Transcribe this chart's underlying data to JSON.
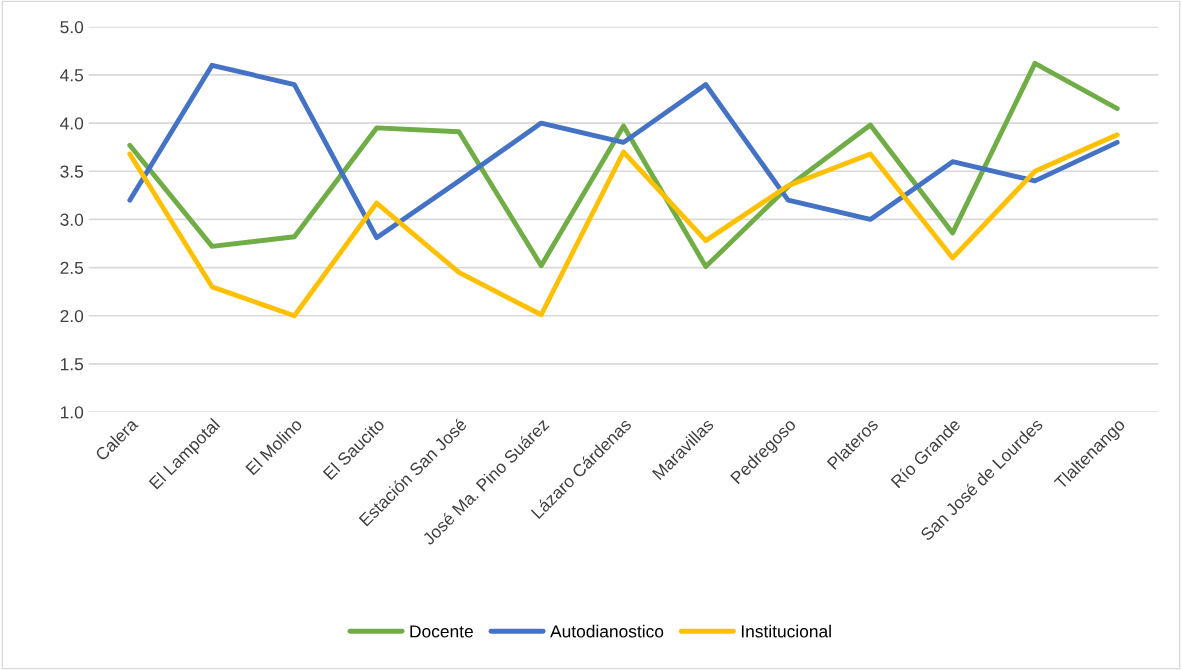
{
  "chart_data": {
    "type": "line",
    "categories": [
      "Calera",
      "El Lampotal",
      "El Molino",
      "El Saucito",
      "Estación San José",
      "José Ma. Pino Suárez",
      "Lázaro Cárdenas",
      "Maravillas",
      "Pedregoso",
      "Plateros",
      "Río Grande",
      "San José de Lourdes",
      "Tlaltenango"
    ],
    "series": [
      {
        "name": "Docente",
        "color": "#70ad47",
        "values": [
          3.77,
          2.72,
          2.82,
          3.95,
          3.91,
          2.52,
          3.97,
          2.51,
          3.34,
          3.98,
          2.86,
          4.62,
          4.15
        ]
      },
      {
        "name": "Autodianostico",
        "color": "#4472c4",
        "values": [
          3.2,
          4.6,
          4.4,
          2.81,
          3.4,
          4.0,
          3.8,
          4.4,
          3.2,
          3.0,
          3.6,
          3.4,
          3.8
        ]
      },
      {
        "name": "Institucional",
        "color": "#ffc000",
        "values": [
          3.68,
          2.3,
          2.0,
          3.17,
          2.45,
          2.01,
          3.7,
          2.78,
          3.35,
          3.68,
          2.6,
          3.5,
          3.88
        ]
      }
    ],
    "ylim": [
      1.0,
      5.0
    ],
    "yticks": [
      {
        "value": 1.0,
        "label": "1.0"
      },
      {
        "value": 1.5,
        "label": "1.5"
      },
      {
        "value": 2.0,
        "label": "2.0"
      },
      {
        "value": 2.5,
        "label": "2.5"
      },
      {
        "value": 3.0,
        "label": "3.0"
      },
      {
        "value": 3.5,
        "label": "3.5"
      },
      {
        "value": 4.0,
        "label": "4.0"
      },
      {
        "value": 4.5,
        "label": "4.5"
      },
      {
        "value": 5.0,
        "label": "5.0"
      }
    ],
    "grid": "y",
    "legend": "bottom",
    "marker": "none",
    "line_style": "solid"
  }
}
